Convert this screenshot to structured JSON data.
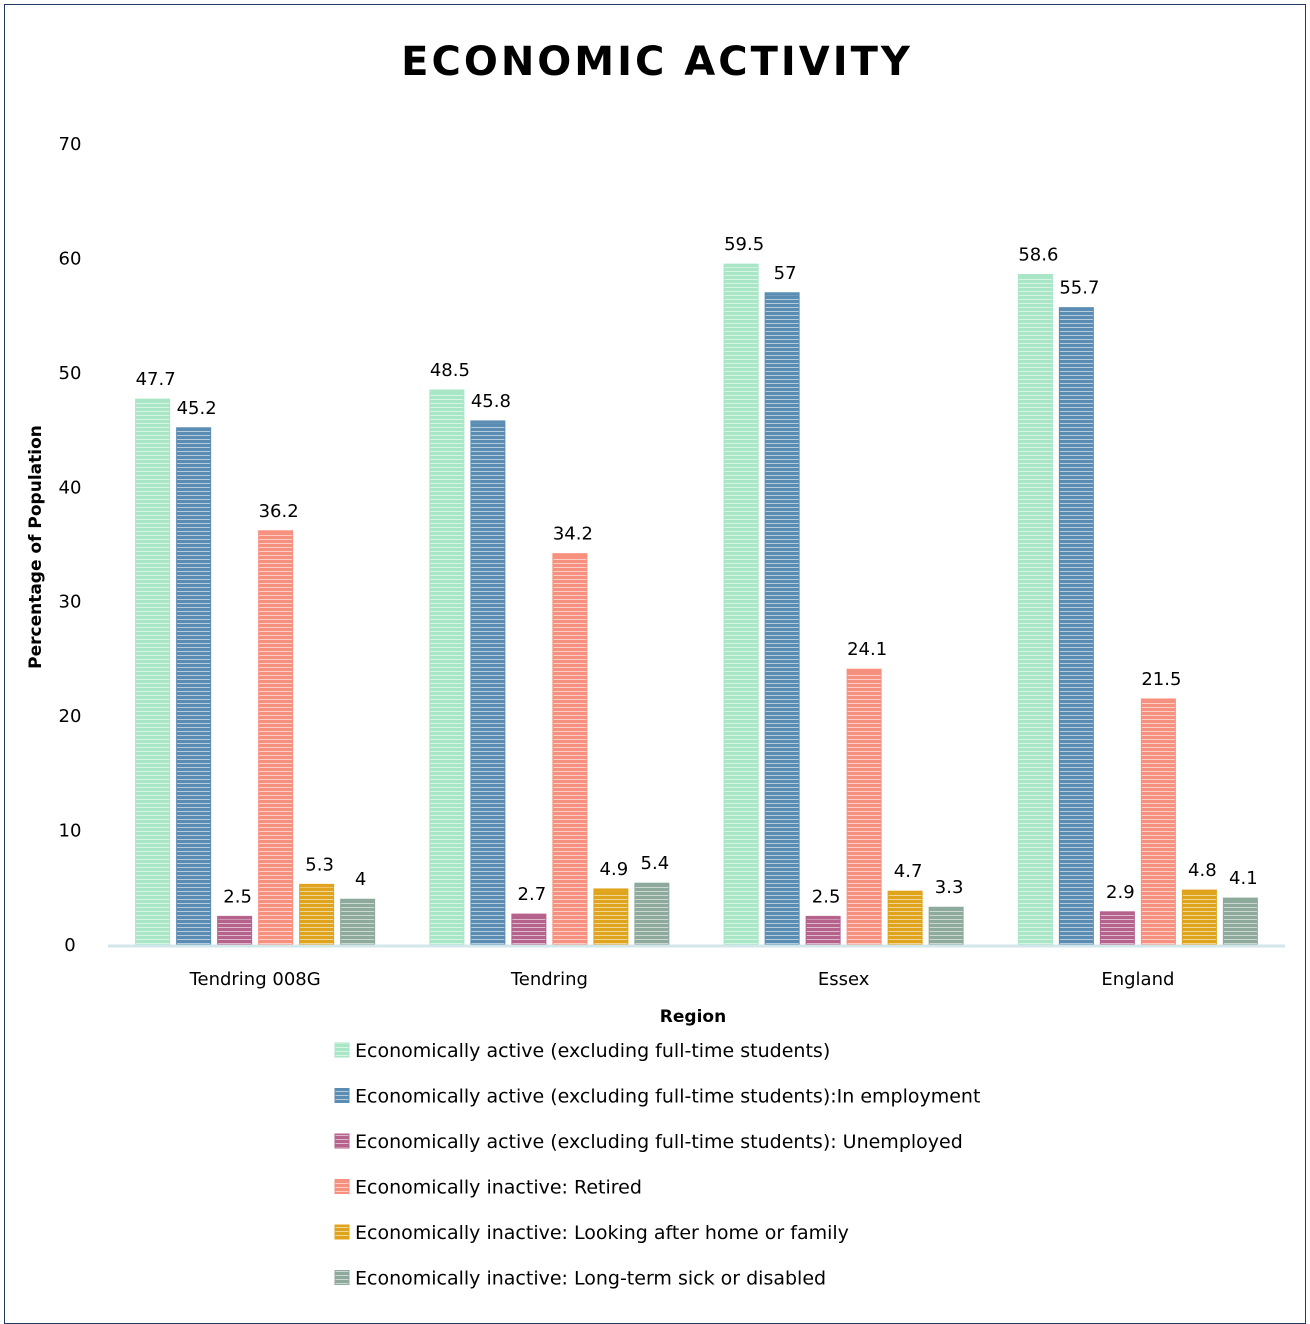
{
  "chart_data": {
    "type": "bar",
    "title": "ECONOMIC ACTIVITY",
    "xlabel": "Region",
    "ylabel": "Percentage of Population",
    "ylim": [
      0,
      70
    ],
    "yticks": [
      0,
      10,
      20,
      30,
      40,
      50,
      60,
      70
    ],
    "grid": false,
    "legend_position": "bottom",
    "categories": [
      "Tendring 008G",
      "Tendring",
      "Essex",
      "England"
    ],
    "series": [
      {
        "name": "Economically active (excluding full-time students)",
        "values": [
          47.7,
          48.5,
          59.5,
          58.6
        ],
        "color": "#a8e6c6"
      },
      {
        "name": "Economically active (excluding full-time students):In employment",
        "values": [
          45.2,
          45.8,
          57,
          55.7
        ],
        "color": "#5b8db3"
      },
      {
        "name": "Economically active (excluding full-time students): Unemployed",
        "values": [
          2.5,
          2.7,
          2.5,
          2.9
        ],
        "color": "#b5628c"
      },
      {
        "name": "Economically inactive: Retired",
        "values": [
          36.2,
          34.2,
          24.1,
          21.5
        ],
        "color": "#f7917f"
      },
      {
        "name": "Economically inactive: Looking after home or family",
        "values": [
          5.3,
          4.9,
          4.7,
          4.8
        ],
        "color": "#e0a41c"
      },
      {
        "name": "Economically inactive: Long-term sick or disabled",
        "values": [
          4,
          5.4,
          3.3,
          4.1
        ],
        "color": "#8daa9c"
      }
    ]
  }
}
